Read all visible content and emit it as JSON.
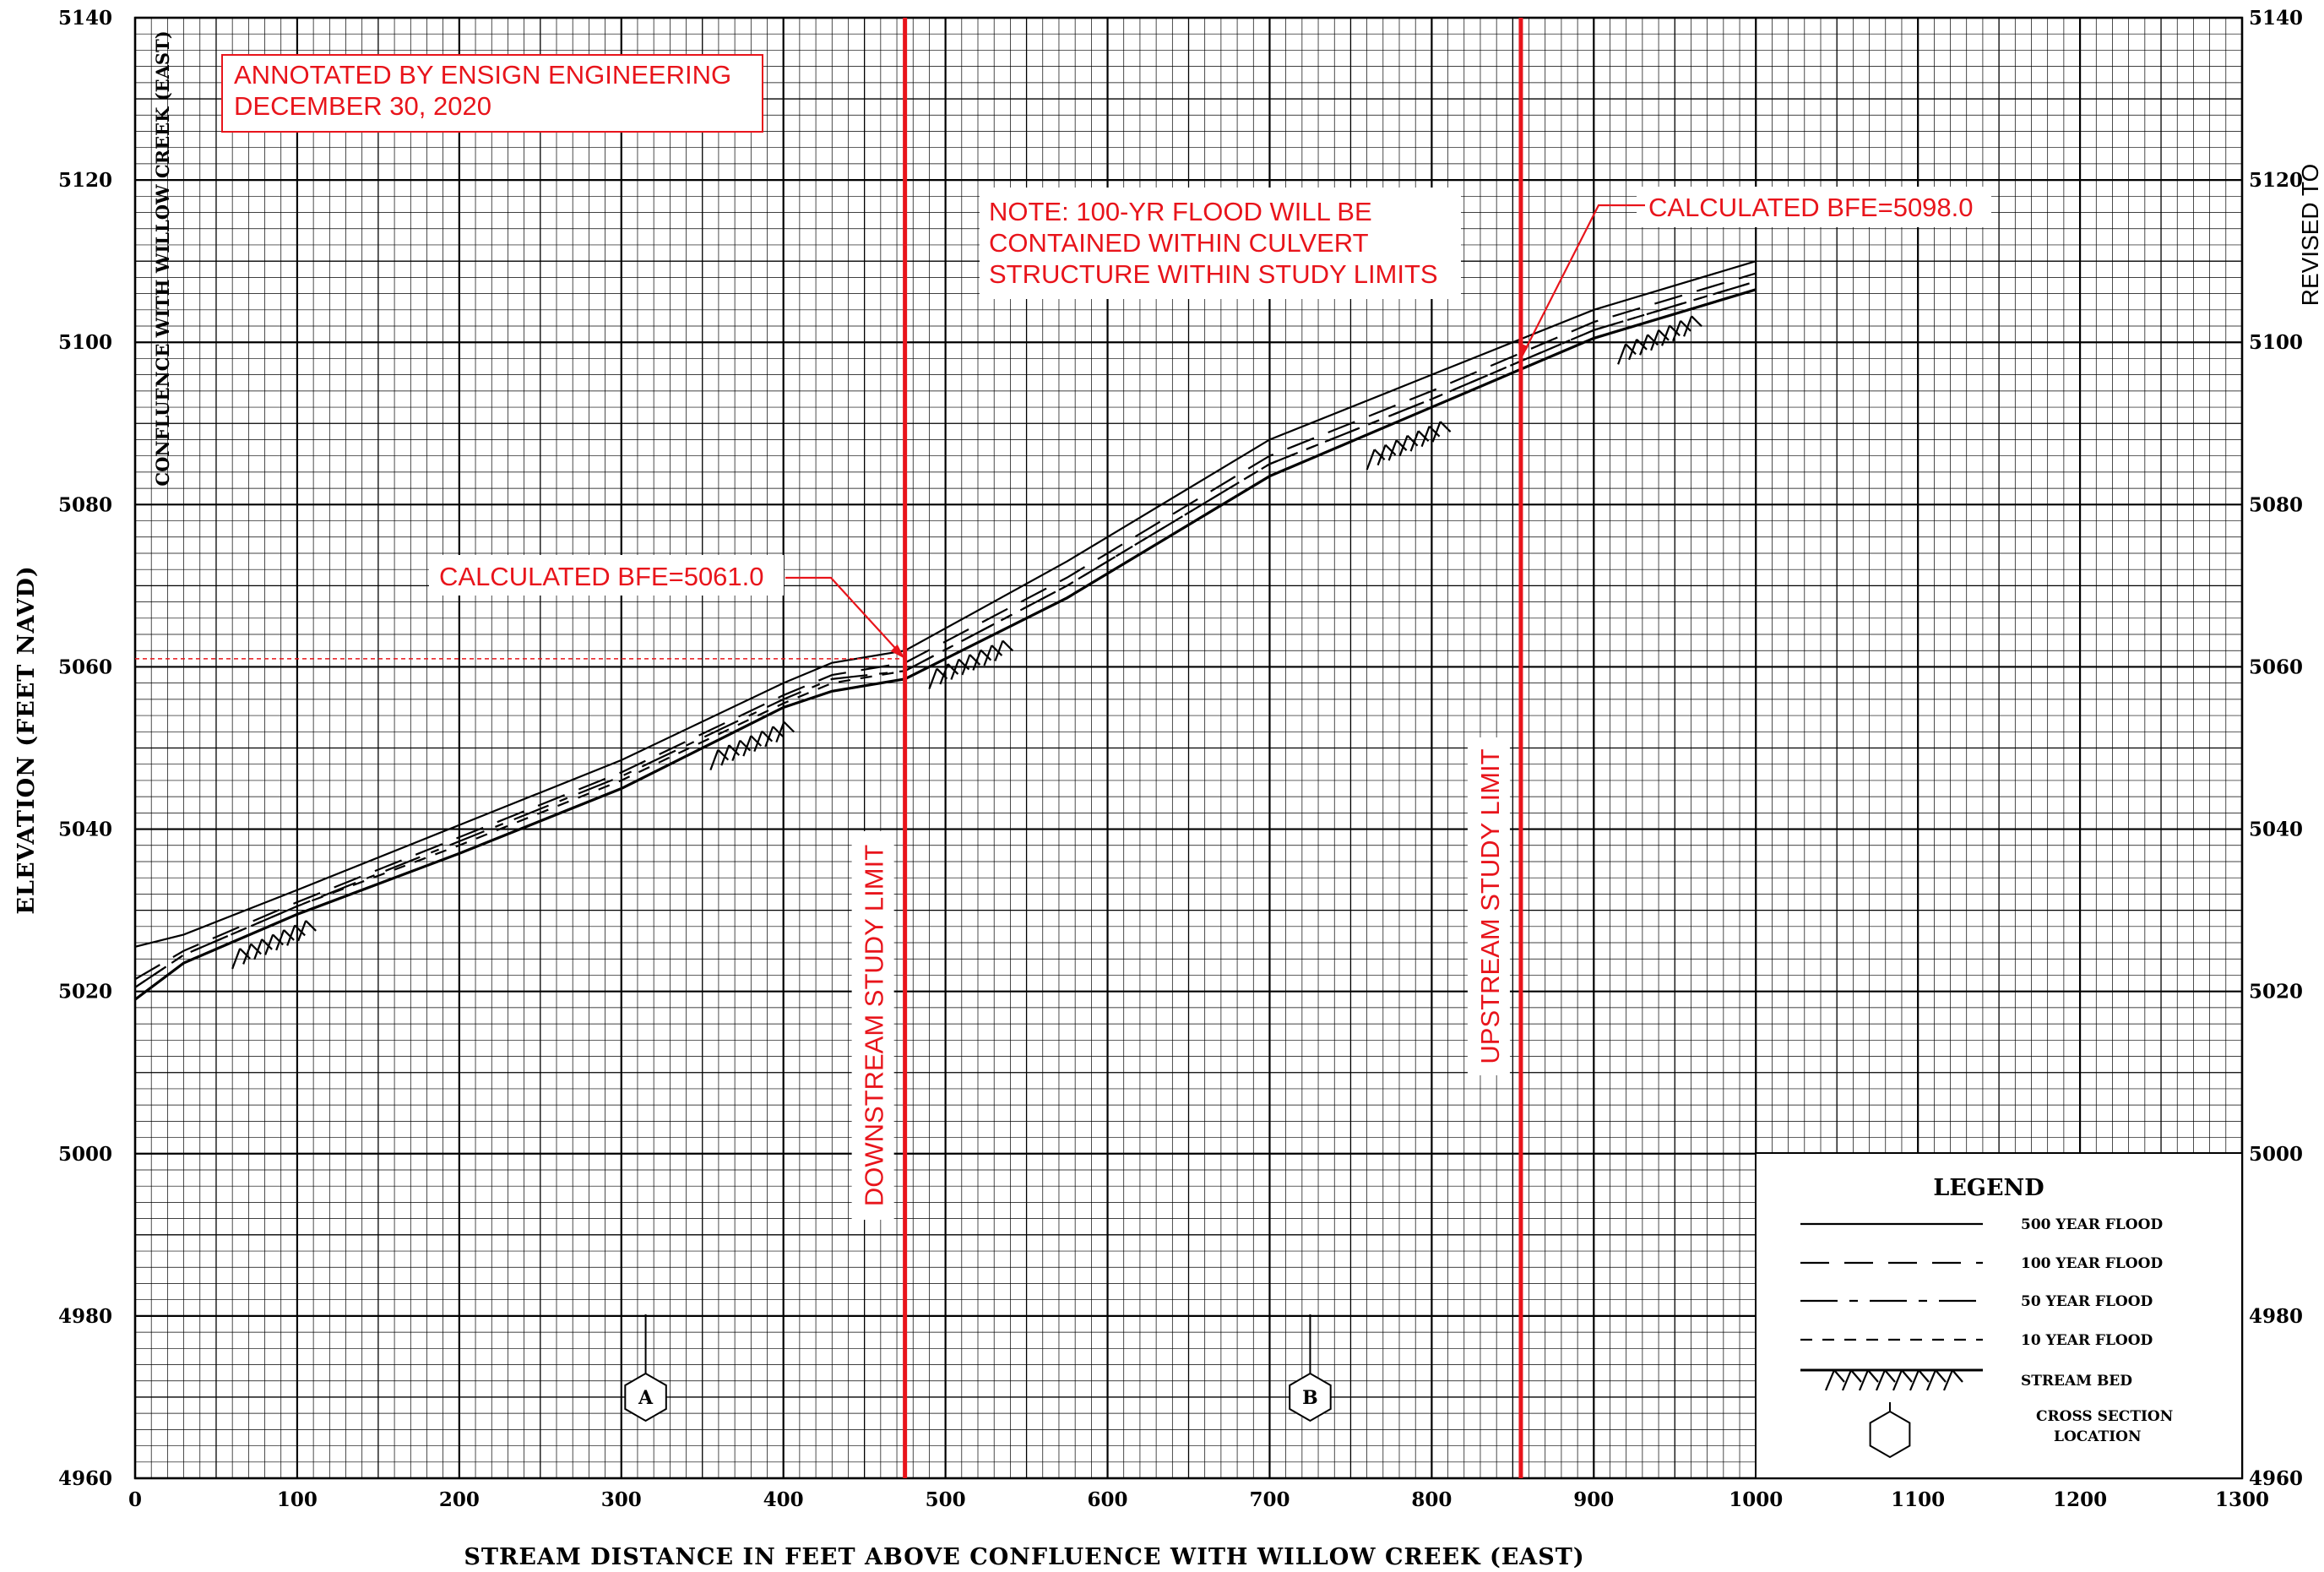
{
  "chart_data": {
    "type": "line",
    "xlabel": "STREAM DISTANCE IN FEET ABOVE CONFLUENCE WITH WILLOW CREEK (EAST)",
    "ylabel": "ELEVATION (FEET NAVD)",
    "xlim": [
      0,
      1300
    ],
    "ylim": [
      4960,
      5140
    ],
    "x_ticks": [
      "0",
      "100",
      "200",
      "300",
      "400",
      "500",
      "600",
      "700",
      "800",
      "900",
      "1000",
      "1100",
      "1200",
      "1300"
    ],
    "y_ticks": [
      "4960",
      "4980",
      "5000",
      "5020",
      "5040",
      "5060",
      "5080",
      "5100",
      "5120",
      "5140"
    ],
    "right_y_ticks": [
      "4960",
      "4980",
      "5000",
      "5020",
      "5040",
      "5060",
      "5080",
      "5100",
      "5120",
      "5140"
    ],
    "grid": true,
    "series": [
      {
        "name": "500 YEAR FLOOD",
        "style": "solid",
        "x": [
          0,
          30,
          100,
          200,
          300,
          400,
          430,
          475,
          575,
          700,
          800,
          900,
          1000
        ],
        "y": [
          5025.5,
          5027,
          5032.5,
          5040.5,
          5048.5,
          5058,
          5060.5,
          5062,
          5073,
          5088,
          5096,
          5104,
          5110
        ]
      },
      {
        "name": "100 YEAR FLOOD",
        "style": "long-dash",
        "x": [
          0,
          30,
          100,
          200,
          300,
          400,
          430,
          475,
          575,
          700,
          800,
          900,
          1000
        ],
        "y": [
          5021.5,
          5025,
          5031,
          5039,
          5047,
          5056.5,
          5059,
          5060.5,
          5071,
          5086,
          5094,
          5102.5,
          5108.5
        ]
      },
      {
        "name": "50 YEAR FLOOD",
        "style": "dash-dot",
        "x": [
          0,
          30,
          100,
          200,
          300,
          400,
          430,
          475,
          575,
          700,
          800,
          900,
          1000
        ],
        "y": [
          5020.5,
          5024.5,
          5030.5,
          5038.5,
          5046.5,
          5056,
          5058.5,
          5059.5,
          5070,
          5085,
          5093,
          5101.5,
          5107.5
        ]
      },
      {
        "name": "10 YEAR FLOOD",
        "style": "short-dash",
        "x": [
          0,
          30,
          100,
          200,
          300,
          400,
          430,
          475,
          575,
          700,
          800,
          900,
          1000
        ],
        "y": [
          5020.5,
          5024.5,
          5030.5,
          5038,
          5046,
          5055.5,
          5058,
          5059.5,
          5070,
          5085,
          5093,
          5101.5,
          5107.5
        ]
      },
      {
        "name": "STREAM BED",
        "style": "bed",
        "x": [
          0,
          30,
          100,
          200,
          300,
          400,
          430,
          475,
          575,
          700,
          800,
          900,
          1000
        ],
        "y": [
          5019,
          5023.5,
          5029.5,
          5037,
          5045,
          5055,
          5057,
          5058.5,
          5068.5,
          5083.5,
          5092,
          5100.5,
          5106.5
        ]
      }
    ],
    "bed_hatches": [
      {
        "x": 85,
        "y": 5027
      },
      {
        "x": 380,
        "y": 5051.5
      },
      {
        "x": 515,
        "y": 5061.5
      },
      {
        "x": 785,
        "y": 5088.5
      },
      {
        "x": 940,
        "y": 5101.5
      }
    ],
    "study_limits": [
      {
        "x": 475,
        "label": "DOWNSTREAM STUDY LIMIT"
      },
      {
        "x": 855,
        "label": "UPSTREAM STUDY LIMIT"
      }
    ],
    "bfe_markers": [
      {
        "label": "CALCULATED BFE=5061.0",
        "x": 475,
        "y": 5061.0
      },
      {
        "label": "CALCULATED BFE=5098.0",
        "x": 855,
        "y": 5098.0
      }
    ],
    "cross_sections": [
      {
        "label": "A",
        "x": 315
      },
      {
        "label": "B",
        "x": 725
      }
    ]
  },
  "annotations": {
    "stamp_line1": "ANNOTATED BY ENSIGN ENGINEERING",
    "stamp_line2": "DECEMBER 30, 2020",
    "note_line1": "NOTE: 100-YR FLOOD WILL BE",
    "note_line2": "CONTAINED WITHIN CULVERT",
    "note_line3": "STRUCTURE WITHIN STUDY LIMITS",
    "confluence_label": "CONFLUENCE WITH WILLOW CREEK (EAST)",
    "revised_label": "REVISED TO"
  },
  "legend": {
    "title": "LEGEND",
    "items": [
      {
        "label": "500 YEAR FLOOD",
        "style": "solid"
      },
      {
        "label": "100 YEAR FLOOD",
        "style": "long-dash"
      },
      {
        "label": "50 YEAR FLOOD",
        "style": "dash-dot"
      },
      {
        "label": "10 YEAR FLOOD",
        "style": "short-dash"
      },
      {
        "label": "STREAM BED",
        "style": "bed"
      },
      {
        "label": "CROSS SECTION",
        "style": "hex"
      }
    ],
    "cross_section_label_line2": "LOCATION"
  },
  "colors": {
    "annotation": "#e8141b",
    "line": "#000000"
  }
}
